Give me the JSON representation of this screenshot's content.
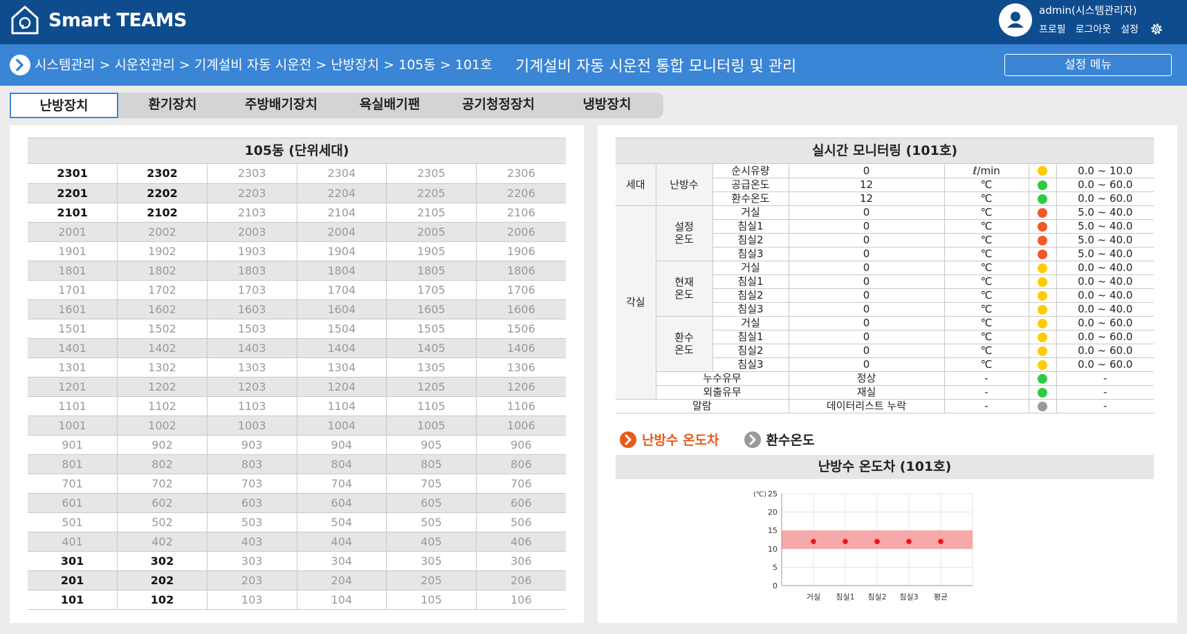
{
  "header": {
    "brand": "Smart TEAMS",
    "user_name": "admin(시스템관리자)",
    "links": [
      "프로필",
      "로그아웃",
      "설정"
    ]
  },
  "crumbs": {
    "path": "시스템관리 > 시운전관리 > 기계설비 자동 시운전 > 난방장치 > 105동 > 101호",
    "title": "기계설비 자동 시운전 통합 모니터링 및 관리",
    "settings_button": "설정 메뉴"
  },
  "tabs": [
    "난방장치",
    "환기장치",
    "주방배기장치",
    "욕실배기팬",
    "공기청정장치",
    "냉방장치"
  ],
  "active_tab": 0,
  "building": {
    "title": "105동 (단위세대)",
    "floors": [
      23,
      22,
      21,
      20,
      19,
      18,
      17,
      16,
      15,
      14,
      13,
      12,
      11,
      10,
      9,
      8,
      7,
      6,
      5,
      4,
      3,
      2,
      1
    ],
    "units_per_floor": 6,
    "active_units": [
      "2301",
      "2302",
      "2201",
      "2202",
      "2101",
      "2102",
      "301",
      "302",
      "201",
      "202",
      "101",
      "102"
    ]
  },
  "monitor": {
    "title": "실시간 모니터링 (101호)",
    "labels": {
      "household": "세대",
      "heating_water": "난방수",
      "room": "각실",
      "set_temp": "설정\n온도",
      "cur_temp": "현재\n온도",
      "ret_temp": "환수\n온도",
      "leak": "누수유무",
      "away": "외출유무",
      "alarm": "알람"
    },
    "colors": {
      "yellow": "#ffcc00",
      "green": "#2ecc40",
      "red": "#f05a28",
      "gray": "#999999"
    },
    "water_rows": [
      {
        "item": "순시유량",
        "value": "0",
        "unit": "ℓ/min",
        "status": "yellow",
        "range": "0.0 ~ 10.0"
      },
      {
        "item": "공급온도",
        "value": "12",
        "unit": "℃",
        "status": "green",
        "range": "0.0 ~ 60.0"
      },
      {
        "item": "환수온도",
        "value": "12",
        "unit": "℃",
        "status": "green",
        "range": "0.0 ~ 60.0"
      }
    ],
    "room_groups": [
      {
        "key": "set_temp",
        "rows": [
          {
            "item": "거실",
            "value": "0",
            "unit": "℃",
            "status": "red",
            "range": "5.0 ~ 40.0"
          },
          {
            "item": "침실1",
            "value": "0",
            "unit": "℃",
            "status": "red",
            "range": "5.0 ~ 40.0"
          },
          {
            "item": "침실2",
            "value": "0",
            "unit": "℃",
            "status": "red",
            "range": "5.0 ~ 40.0"
          },
          {
            "item": "침실3",
            "value": "0",
            "unit": "℃",
            "status": "red",
            "range": "5.0 ~ 40.0"
          }
        ]
      },
      {
        "key": "cur_temp",
        "rows": [
          {
            "item": "거실",
            "value": "0",
            "unit": "℃",
            "status": "yellow",
            "range": "0.0 ~ 40.0"
          },
          {
            "item": "침실1",
            "value": "0",
            "unit": "℃",
            "status": "yellow",
            "range": "0.0 ~ 40.0"
          },
          {
            "item": "침실2",
            "value": "0",
            "unit": "℃",
            "status": "yellow",
            "range": "0.0 ~ 40.0"
          },
          {
            "item": "침실3",
            "value": "0",
            "unit": "℃",
            "status": "yellow",
            "range": "0.0 ~ 40.0"
          }
        ]
      },
      {
        "key": "ret_temp",
        "rows": [
          {
            "item": "거실",
            "value": "0",
            "unit": "℃",
            "status": "yellow",
            "range": "0.0 ~ 60.0"
          },
          {
            "item": "침실1",
            "value": "0",
            "unit": "℃",
            "status": "yellow",
            "range": "0.0 ~ 60.0"
          },
          {
            "item": "침실2",
            "value": "0",
            "unit": "℃",
            "status": "yellow",
            "range": "0.0 ~ 60.0"
          },
          {
            "item": "침실3",
            "value": "0",
            "unit": "℃",
            "status": "yellow",
            "range": "0.0 ~ 60.0"
          }
        ]
      }
    ],
    "leak": {
      "value": "정상",
      "unit": "-",
      "status": "green",
      "range": "-"
    },
    "away": {
      "value": "재실",
      "unit": "-",
      "status": "green",
      "range": "-"
    },
    "alarm": {
      "value": "데이터리스트 누락",
      "unit": "-",
      "status": "gray",
      "range": "-"
    }
  },
  "chart_section": {
    "subtabs": [
      "난방수 온도차",
      "환수온도"
    ],
    "active_subtab": 0,
    "active_color": "#e85a1a",
    "title": "난방수 온도차 (101호)"
  },
  "chart_data": {
    "type": "scatter",
    "categories": [
      "거실",
      "침실1",
      "침실2",
      "침실3",
      "평균"
    ],
    "values": [
      12,
      12,
      12,
      12,
      12
    ],
    "ylabel": "(℃)",
    "ylim": [
      0,
      25
    ],
    "yticks": [
      0,
      5,
      10,
      15,
      20,
      25
    ],
    "band": [
      10,
      15
    ],
    "band_color": "#f7a8a8",
    "point_color": "#e8161b",
    "grid": true
  }
}
